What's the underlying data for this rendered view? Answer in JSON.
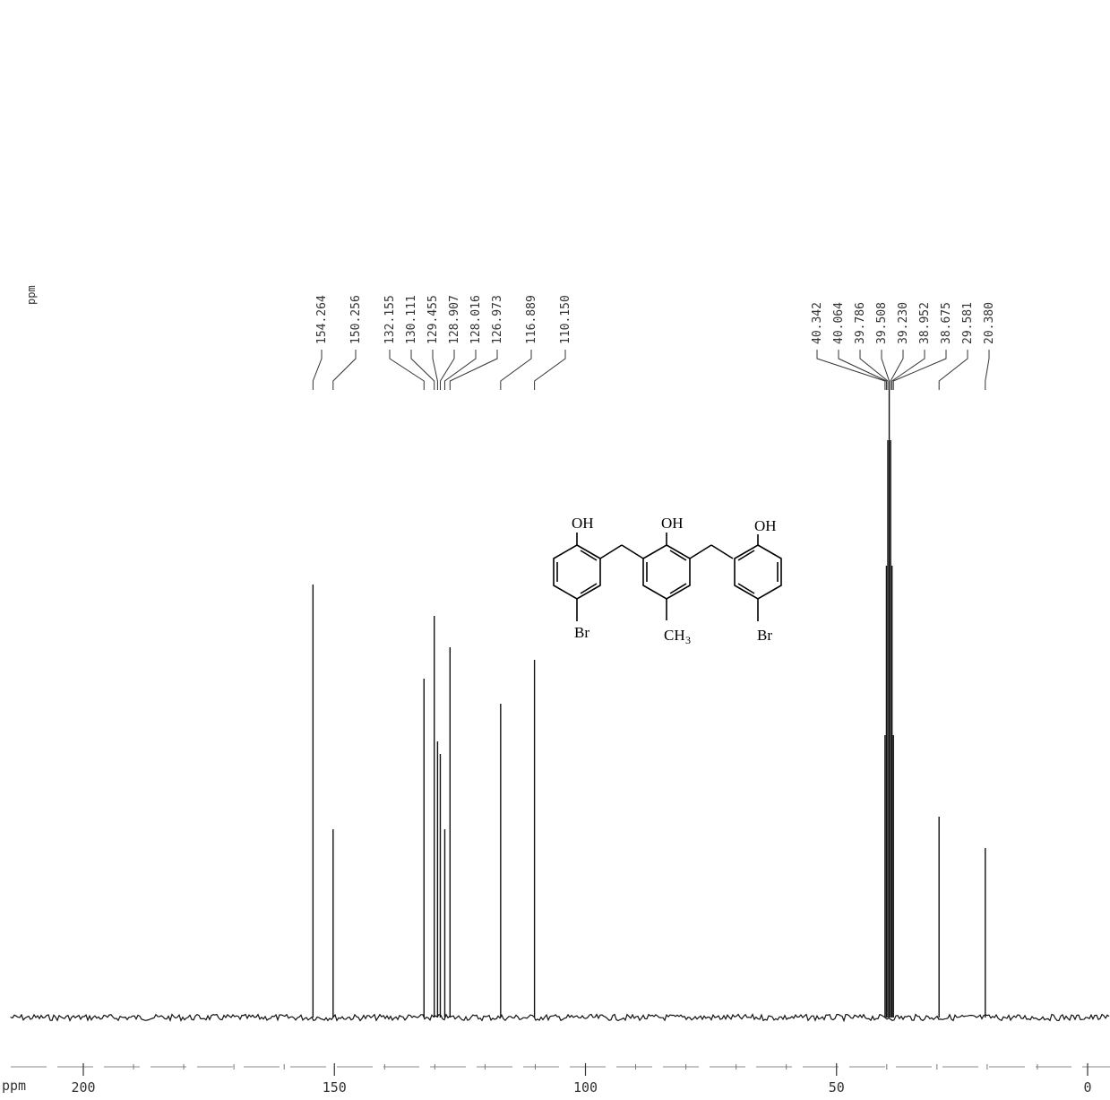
{
  "chart_data": {
    "type": "line",
    "title": "",
    "xlabel": "ppm",
    "ylabel": "",
    "x_axis": {
      "reversed": true,
      "xlim": [
        220,
        -2
      ],
      "ticks": [
        200,
        150,
        100,
        50,
        0
      ]
    },
    "y_label_left": "ppm",
    "peaks": [
      {
        "ppm": 154.264,
        "label": "154.264",
        "rel_intensity": 0.69
      },
      {
        "ppm": 150.256,
        "label": "150.256",
        "rel_intensity": 0.3
      },
      {
        "ppm": 132.155,
        "label": "132.155",
        "rel_intensity": 0.54
      },
      {
        "ppm": 130.111,
        "label": "130.111",
        "rel_intensity": 0.64
      },
      {
        "ppm": 129.455,
        "label": "129.455",
        "rel_intensity": 0.44
      },
      {
        "ppm": 128.907,
        "label": "128.907",
        "rel_intensity": 0.42
      },
      {
        "ppm": 128.016,
        "label": "128.016",
        "rel_intensity": 0.3
      },
      {
        "ppm": 126.973,
        "label": "126.973",
        "rel_intensity": 0.59
      },
      {
        "ppm": 116.889,
        "label": "116.889",
        "rel_intensity": 0.5
      },
      {
        "ppm": 110.15,
        "label": "110.150",
        "rel_intensity": 0.57
      },
      {
        "ppm": 40.342,
        "label": "40.342",
        "rel_intensity": 0.45
      },
      {
        "ppm": 40.064,
        "label": "40.064",
        "rel_intensity": 0.72
      },
      {
        "ppm": 39.786,
        "label": "39.786",
        "rel_intensity": 0.92
      },
      {
        "ppm": 39.508,
        "label": "39.508",
        "rel_intensity": 1.0
      },
      {
        "ppm": 39.23,
        "label": "39.230",
        "rel_intensity": 0.92
      },
      {
        "ppm": 38.952,
        "label": "38.952",
        "rel_intensity": 0.72
      },
      {
        "ppm": 38.675,
        "label": "38.675",
        "rel_intensity": 0.45
      },
      {
        "ppm": 29.581,
        "label": "29.581",
        "rel_intensity": 0.32
      },
      {
        "ppm": 20.38,
        "label": "20.380",
        "rel_intensity": 0.27
      }
    ]
  },
  "molecule": {
    "oh_left": "OH",
    "oh_center": "OH",
    "oh_right": "OH",
    "br_left": "Br",
    "br_right": "Br",
    "ch3_main": "CH",
    "ch3_sub": "3"
  },
  "axis": {
    "unit_bottom": "ppm",
    "unit_side": "ppm"
  }
}
